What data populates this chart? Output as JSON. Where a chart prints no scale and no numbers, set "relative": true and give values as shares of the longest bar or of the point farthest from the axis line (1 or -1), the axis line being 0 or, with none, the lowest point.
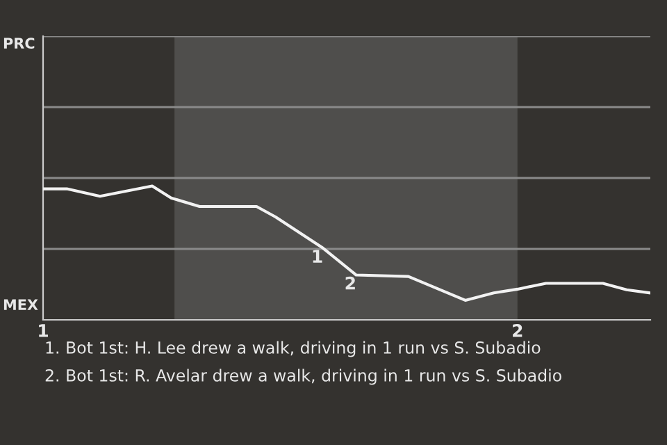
{
  "chart_data": {
    "type": "line",
    "relative": true,
    "x": [
      1.0,
      1.05,
      1.12,
      1.23,
      1.27,
      1.33,
      1.45,
      1.49,
      1.59,
      1.66,
      1.77,
      1.89,
      1.95,
      2.0,
      2.06,
      2.18,
      2.23,
      2.28
    ],
    "series": [
      {
        "color": "#f2f2f2",
        "values": [
          0.979,
          0.979,
          0.924,
          1.0,
          0.911,
          0.847,
          0.847,
          0.769,
          0.536,
          0.335,
          0.324,
          0.146,
          0.201,
          0.229,
          0.273,
          0.273,
          0.225,
          0.201
        ]
      }
    ],
    "xlim": [
      1.0,
      2.28
    ],
    "xticks": [
      1,
      2
    ],
    "marker": "none",
    "line_style": "solid",
    "ref_lines": [
      {
        "axis": "y",
        "value": 0.53,
        "color": "#8a8a8a"
      },
      {
        "axis": "y",
        "value": 1.06,
        "color": "#8a8a8a"
      },
      {
        "axis": "y",
        "value": 1.59,
        "color": "#8a8a8a"
      },
      {
        "axis": "y",
        "value": 2.12,
        "color": "#8a8a8a"
      }
    ],
    "bands": [
      {
        "axis": "x",
        "from": 1.277,
        "to": 2.0,
        "color": "#4f4e4c"
      }
    ],
    "annotations": [
      {
        "text": "1",
        "x": 1.59,
        "y": 0.536
      },
      {
        "text": "2",
        "x": 1.66,
        "y": 0.335
      },
      "PRC",
      "MEX",
      "1. Bot 1st: H. Lee drew a walk, driving in 1 run vs S. Subadio",
      "2. Bot 1st: R. Avelar drew a walk, driving in 1 run vs S. Subadio"
    ]
  }
}
